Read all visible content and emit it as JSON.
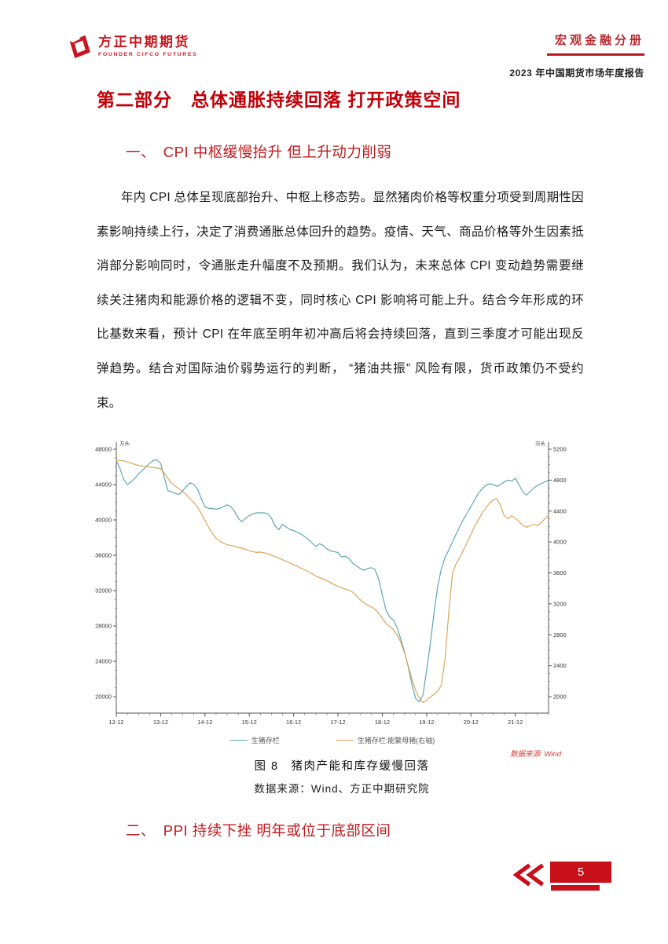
{
  "logo": {
    "name_cn": "方正中期期货",
    "name_en": "FOUNDER CIFCO FUTURES"
  },
  "header": {
    "booklet": "宏观金融分册",
    "report_title": "2023 年中国期货市场年度报告"
  },
  "title": "第二部分　总体通胀持续回落 打开政策空间",
  "sections": [
    {
      "heading": "一、　CPI 中枢缓慢抬升 但上升动力削弱",
      "body": "年内 CPI 总体呈现底部抬升、中枢上移态势。显然猪肉价格等权重分项受到周期性因素影响持续上行，决定了消费通胀总体回升的趋势。疫情、天气、商品价格等外生因素抵消部分影响同时，令通胀走升幅度不及预期。我们认为，未来总体 CPI 变动趋势需要继续关注猪肉和能源价格的逻辑不变，同时核心 CPI 影响将可能上升。结合今年形成的环比基数来看，预计 CPI 在年底至明年初冲高后将会持续回落，直到三季度才可能出现反弹趋势。结合对国际油价弱势运行的判断， “猪油共振” 风险有限，货币政策仍不受约束。"
    },
    {
      "heading": "二、　PPI 持续下挫 明年或位于底部区间"
    }
  ],
  "figure": {
    "caption": "图 8　猪肉产能和库存缓慢回落",
    "source_caption": "数据来源：Wind、方正中期研究院",
    "source_note": "数据来源: Wind"
  },
  "footer": {
    "page_number": "5"
  },
  "colors": {
    "brand_red": "#c8161e",
    "heading_red": "#c00009",
    "footer_red": "#c8101a",
    "series_teal": "#5fa6b0",
    "series_orange": "#dca45a"
  },
  "chart_data": {
    "type": "line",
    "title": "猪肉产能和库存缓慢回落",
    "grid": false,
    "legend_position": "bottom",
    "x_max": 117,
    "x_tick_months": [
      0,
      12,
      24,
      36,
      48,
      60,
      72,
      84,
      96,
      108
    ],
    "x_tick_labels": [
      "12-12",
      "13-12",
      "14-12",
      "15-12",
      "16-12",
      "17-12",
      "18-12",
      "19-12",
      "20-12",
      "21-12"
    ],
    "left_axis": {
      "unit": "万头",
      "min": 20000,
      "max": 48000,
      "step": 4000
    },
    "right_axis": {
      "unit": "万头",
      "min": 2000,
      "max": 5200,
      "step": 400
    },
    "series": [
      {
        "name": "生猪存栏",
        "axis": "left",
        "color": "#5fa6b0",
        "points": [
          [
            0,
            46700
          ],
          [
            1,
            45800
          ],
          [
            2,
            44600
          ],
          [
            3,
            44000
          ],
          [
            4,
            44300
          ],
          [
            5,
            44700
          ],
          [
            6,
            45200
          ],
          [
            7,
            45600
          ],
          [
            8,
            46000
          ],
          [
            9,
            46400
          ],
          [
            10,
            46700
          ],
          [
            11,
            46800
          ],
          [
            12,
            46400
          ],
          [
            13,
            44800
          ],
          [
            14,
            43300
          ],
          [
            15,
            43200
          ],
          [
            16,
            43000
          ],
          [
            17,
            42900
          ],
          [
            18,
            43300
          ],
          [
            19,
            43800
          ],
          [
            20,
            44200
          ],
          [
            21,
            44000
          ],
          [
            22,
            43500
          ],
          [
            23,
            42400
          ],
          [
            24,
            41500
          ],
          [
            25,
            41300
          ],
          [
            26,
            41300
          ],
          [
            27,
            41200
          ],
          [
            28,
            41300
          ],
          [
            29,
            41500
          ],
          [
            30,
            41700
          ],
          [
            31,
            41500
          ],
          [
            32,
            41000
          ],
          [
            33,
            40200
          ],
          [
            34,
            39800
          ],
          [
            35,
            40200
          ],
          [
            36,
            40500
          ],
          [
            37,
            40700
          ],
          [
            38,
            40800
          ],
          [
            39,
            40800
          ],
          [
            40,
            40800
          ],
          [
            41,
            40700
          ],
          [
            42,
            40200
          ],
          [
            43,
            39300
          ],
          [
            44,
            38900
          ],
          [
            45,
            39500
          ],
          [
            46,
            39200
          ],
          [
            47,
            38900
          ],
          [
            48,
            38800
          ],
          [
            49,
            38600
          ],
          [
            50,
            38400
          ],
          [
            51,
            38100
          ],
          [
            52,
            37800
          ],
          [
            53,
            37400
          ],
          [
            54,
            37000
          ],
          [
            55,
            37300
          ],
          [
            56,
            37100
          ],
          [
            57,
            36700
          ],
          [
            58,
            36500
          ],
          [
            59,
            36400
          ],
          [
            60,
            36300
          ],
          [
            61,
            35800
          ],
          [
            62,
            35900
          ],
          [
            63,
            35600
          ],
          [
            64,
            35100
          ],
          [
            65,
            34800
          ],
          [
            66,
            34500
          ],
          [
            67,
            34300
          ],
          [
            68,
            34500
          ],
          [
            69,
            34600
          ],
          [
            70,
            34400
          ],
          [
            71,
            33300
          ],
          [
            72,
            31500
          ],
          [
            73,
            29800
          ],
          [
            74,
            29000
          ],
          [
            75,
            28700
          ],
          [
            76,
            27800
          ],
          [
            77,
            26500
          ],
          [
            78,
            25100
          ],
          [
            79,
            23400
          ],
          [
            80,
            21400
          ],
          [
            81,
            19800
          ],
          [
            82,
            19400
          ],
          [
            83,
            20200
          ],
          [
            84,
            23000
          ],
          [
            85,
            26000
          ],
          [
            86,
            29500
          ],
          [
            87,
            32500
          ],
          [
            88,
            34500
          ],
          [
            89,
            35800
          ],
          [
            90,
            36600
          ],
          [
            91,
            37500
          ],
          [
            92,
            38400
          ],
          [
            93,
            39300
          ],
          [
            94,
            40100
          ],
          [
            95,
            40800
          ],
          [
            96,
            41500
          ],
          [
            97,
            42300
          ],
          [
            98,
            43000
          ],
          [
            99,
            43500
          ],
          [
            100,
            43900
          ],
          [
            101,
            44100
          ],
          [
            102,
            44000
          ],
          [
            103,
            43800
          ],
          [
            104,
            44000
          ],
          [
            105,
            44300
          ],
          [
            106,
            44500
          ],
          [
            107,
            44400
          ],
          [
            108,
            44700
          ],
          [
            109,
            44000
          ],
          [
            110,
            43200
          ],
          [
            111,
            42800
          ],
          [
            112,
            43200
          ],
          [
            113,
            43600
          ],
          [
            114,
            43900
          ],
          [
            115,
            44100
          ],
          [
            116,
            44300
          ],
          [
            117,
            44500
          ]
        ]
      },
      {
        "name": "生猪存栏:能繁母猪(右轴)",
        "axis": "right",
        "color": "#dca45a",
        "points": [
          [
            0,
            5060
          ],
          [
            2,
            5050
          ],
          [
            4,
            5020
          ],
          [
            6,
            4990
          ],
          [
            8,
            4975
          ],
          [
            10,
            4965
          ],
          [
            12,
            4950
          ],
          [
            13,
            4890
          ],
          [
            14,
            4820
          ],
          [
            15,
            4760
          ],
          [
            16,
            4720
          ],
          [
            17,
            4690
          ],
          [
            18,
            4650
          ],
          [
            19,
            4610
          ],
          [
            20,
            4560
          ],
          [
            21,
            4510
          ],
          [
            22,
            4450
          ],
          [
            23,
            4370
          ],
          [
            24,
            4280
          ],
          [
            25,
            4190
          ],
          [
            26,
            4110
          ],
          [
            27,
            4050
          ],
          [
            28,
            4010
          ],
          [
            29,
            3985
          ],
          [
            30,
            3965
          ],
          [
            31,
            3955
          ],
          [
            32,
            3945
          ],
          [
            33,
            3930
          ],
          [
            34,
            3920
          ],
          [
            35,
            3905
          ],
          [
            36,
            3885
          ],
          [
            37,
            3875
          ],
          [
            38,
            3865
          ],
          [
            39,
            3870
          ],
          [
            40,
            3860
          ],
          [
            41,
            3850
          ],
          [
            42,
            3830
          ],
          [
            43,
            3810
          ],
          [
            44,
            3790
          ],
          [
            45,
            3770
          ],
          [
            46,
            3750
          ],
          [
            47,
            3730
          ],
          [
            48,
            3705
          ],
          [
            49,
            3685
          ],
          [
            50,
            3660
          ],
          [
            51,
            3640
          ],
          [
            52,
            3615
          ],
          [
            53,
            3590
          ],
          [
            54,
            3560
          ],
          [
            55,
            3540
          ],
          [
            56,
            3520
          ],
          [
            57,
            3500
          ],
          [
            58,
            3475
          ],
          [
            59,
            3450
          ],
          [
            60,
            3425
          ],
          [
            61,
            3405
          ],
          [
            62,
            3390
          ],
          [
            63,
            3375
          ],
          [
            64,
            3350
          ],
          [
            65,
            3305
          ],
          [
            66,
            3255
          ],
          [
            67,
            3215
          ],
          [
            68,
            3185
          ],
          [
            69,
            3160
          ],
          [
            70,
            3130
          ],
          [
            71,
            3080
          ],
          [
            72,
            3010
          ],
          [
            73,
            2945
          ],
          [
            74,
            2905
          ],
          [
            75,
            2870
          ],
          [
            76,
            2800
          ],
          [
            77,
            2700
          ],
          [
            78,
            2570
          ],
          [
            79,
            2400
          ],
          [
            80,
            2230
          ],
          [
            81,
            2080
          ],
          [
            82,
            1980
          ],
          [
            83,
            1925
          ],
          [
            84,
            1950
          ],
          [
            85,
            1995
          ],
          [
            86,
            2030
          ],
          [
            87,
            2070
          ],
          [
            88,
            2150
          ],
          [
            89,
            2500
          ],
          [
            90,
            3100
          ],
          [
            91,
            3600
          ],
          [
            92,
            3720
          ],
          [
            93,
            3800
          ],
          [
            94,
            3900
          ],
          [
            95,
            4000
          ],
          [
            96,
            4100
          ],
          [
            97,
            4200
          ],
          [
            98,
            4290
          ],
          [
            99,
            4370
          ],
          [
            100,
            4440
          ],
          [
            101,
            4500
          ],
          [
            102,
            4545
          ],
          [
            103,
            4560
          ],
          [
            104,
            4470
          ],
          [
            105,
            4340
          ],
          [
            106,
            4300
          ],
          [
            107,
            4340
          ],
          [
            108,
            4310
          ],
          [
            109,
            4260
          ],
          [
            110,
            4220
          ],
          [
            111,
            4190
          ],
          [
            112,
            4210
          ],
          [
            113,
            4230
          ],
          [
            114,
            4210
          ],
          [
            115,
            4250
          ],
          [
            116,
            4300
          ],
          [
            117,
            4350
          ]
        ]
      }
    ]
  }
}
